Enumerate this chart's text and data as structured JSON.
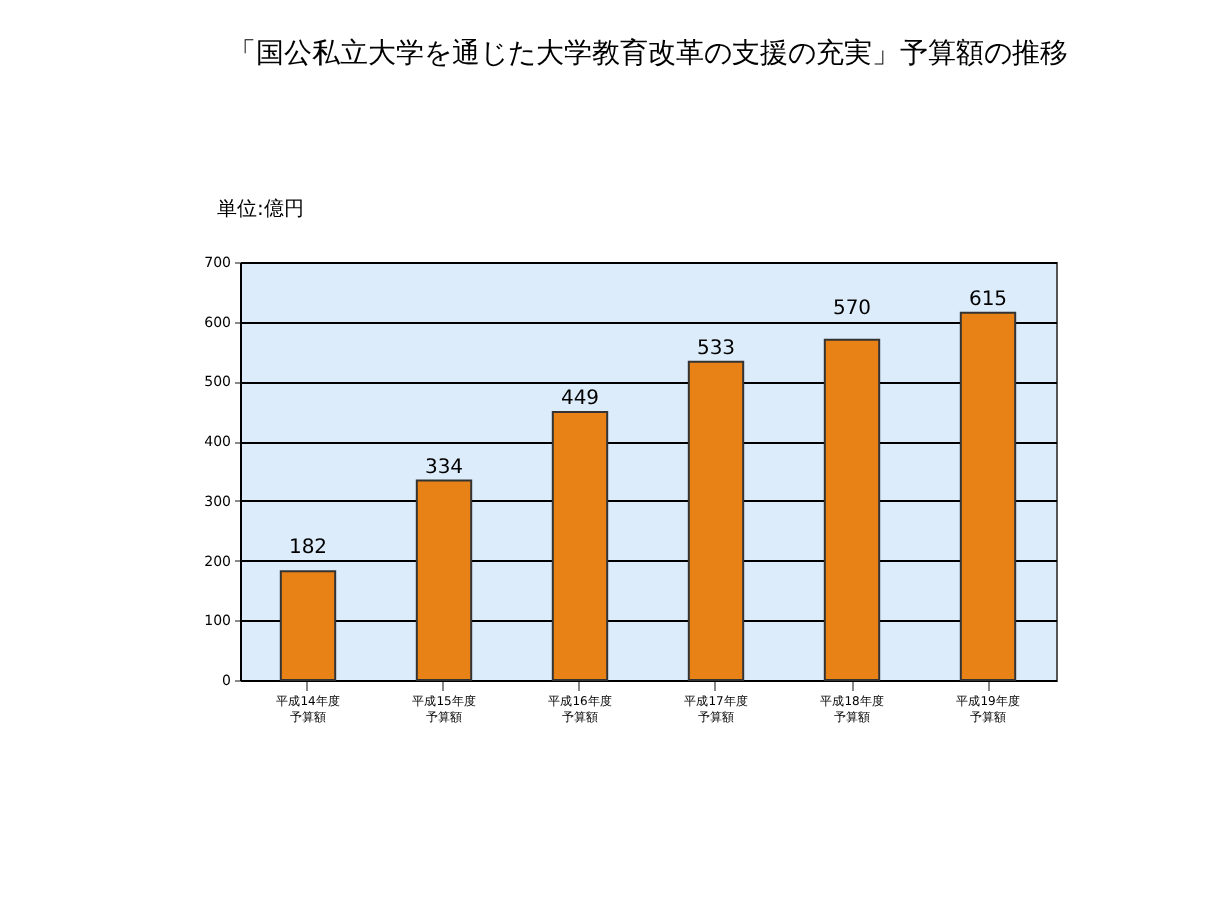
{
  "chart_data": {
    "type": "bar",
    "title": "「国公私立大学を通じた大学教育改革の支援の充実」予算額の推移",
    "ylabel": "単位:億円",
    "categories": [
      "平成14年度予算額",
      "平成15年度予算額",
      "平成16年度予算額",
      "平成17年度予算額",
      "平成18年度予算額",
      "平成19年度予算額"
    ],
    "values": [
      182,
      334,
      449,
      533,
      570,
      615
    ],
    "color": "#e88216",
    "ylim": [
      0,
      700
    ],
    "yticks": [
      0,
      100,
      200,
      300,
      400,
      500,
      600,
      700
    ],
    "grid": "y",
    "data_labels": true
  }
}
